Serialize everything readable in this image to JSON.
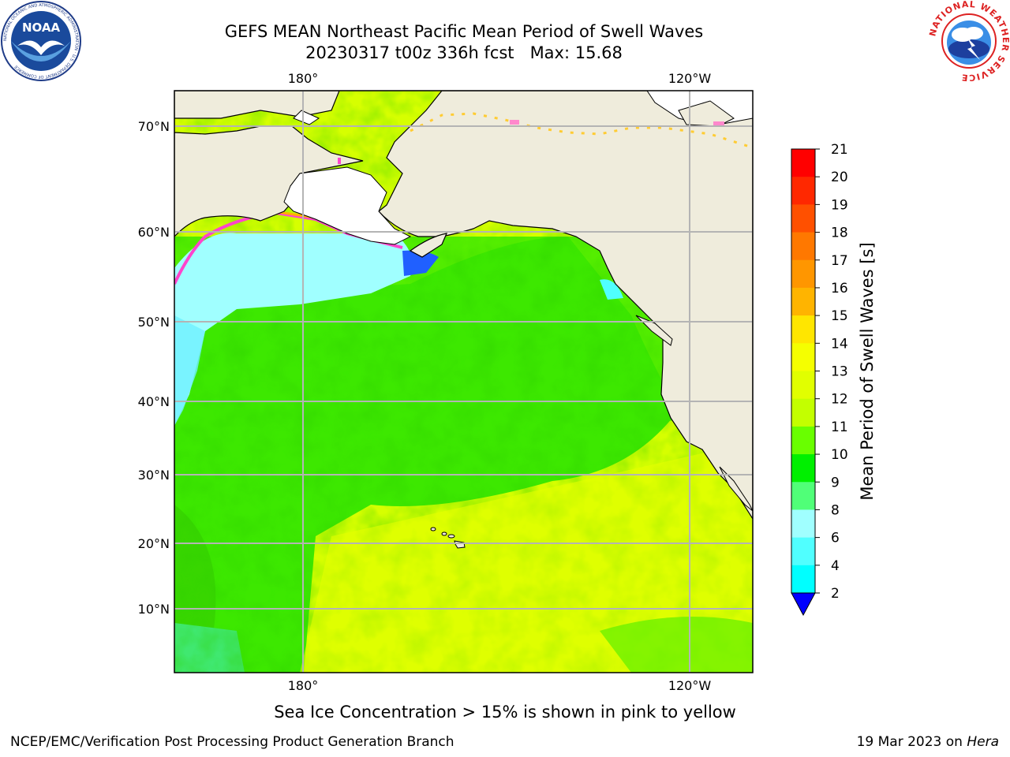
{
  "header": {
    "title_line1": "GEFS MEAN Northeast Pacific Mean Period of Swell Waves",
    "title_line2": "20230317 t00z 336h fcst   Max: 15.68"
  },
  "logos": {
    "noaa": {
      "text": "NOAA",
      "ring_text": "NATIONAL OCEANIC AND ATMOSPHERIC ADMINISTRATION · U.S. DEPARTMENT OF COMMERCE"
    },
    "nws": {
      "ring_text": "NATIONAL WEATHER SERVICE"
    }
  },
  "map": {
    "top_lon_labels": [
      "180°",
      "120°W"
    ],
    "bottom_lon_labels": [
      "180°",
      "120°W"
    ],
    "lat_labels": [
      "70°N",
      "60°N",
      "50°N",
      "40°N",
      "30°N",
      "20°N",
      "10°N"
    ],
    "land_color": "#efecdc",
    "gridline_color": "#b4b4b4"
  },
  "colorbar": {
    "title": "Mean Period of Swell Waves [s]",
    "ticks": [
      "21",
      "20",
      "19",
      "18",
      "17",
      "16",
      "15",
      "14",
      "13",
      "12",
      "11",
      "10",
      "9",
      "8",
      "6",
      "4",
      "2"
    ],
    "colors": [
      "#ff0000",
      "#ff2800",
      "#ff5000",
      "#ff7800",
      "#ff9600",
      "#ffb400",
      "#ffe600",
      "#f5ff00",
      "#e1ff00",
      "#c3ff00",
      "#69ff00",
      "#00f000",
      "#50ff78",
      "#a0ffff",
      "#50ffff",
      "#00ffff",
      "#00ddff",
      "#0078ff"
    ],
    "extend_color": "#0000ff"
  },
  "caption": "Sea Ice Concentration > 15% is shown in pink to yellow",
  "footer": {
    "left": "NCEP/EMC/Verification Post Processing Product Generation Branch",
    "right_prefix": "19 Mar 2023 on",
    "right_machine": "Hera"
  }
}
